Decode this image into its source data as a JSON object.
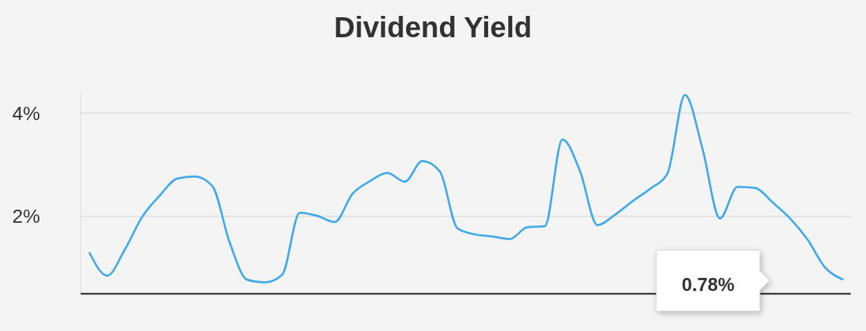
{
  "chart_data": {
    "type": "line",
    "title": "Dividend Yield",
    "categories": [
      null,
      null,
      null,
      null,
      null,
      null,
      null,
      null,
      null,
      null,
      null,
      null,
      null,
      null,
      null,
      null,
      null,
      null,
      null,
      null,
      null,
      null,
      null,
      null,
      null,
      null,
      null,
      null,
      null,
      null,
      null,
      null,
      null,
      null,
      null,
      null,
      null,
      null,
      null,
      null,
      null,
      null,
      null,
      null
    ],
    "series": [
      {
        "color": "#42a9ec",
        "values": [
          1.29,
          0.85,
          1.35,
          1.99,
          2.4,
          2.73,
          2.77,
          2.59,
          1.49,
          0.77,
          0.72,
          0.87,
          2.07,
          2.01,
          1.89,
          2.43,
          2.68,
          2.84,
          2.67,
          3.07,
          2.87,
          1.77,
          1.65,
          1.61,
          1.56,
          1.79,
          1.81,
          3.49,
          2.88,
          1.83,
          2.03,
          2.29,
          2.53,
          2.83,
          4.35,
          3.31,
          1.96,
          2.57,
          2.55,
          2.27,
          1.96,
          1.55,
          1.01,
          0.78
        ]
      }
    ],
    "yticks": [
      {
        "value": 2,
        "label": "2%"
      },
      {
        "value": 4,
        "label": "4%"
      }
    ],
    "ylim": [
      0.5,
      4.4
    ],
    "grid": "y",
    "marker": "none",
    "line_style": "solid",
    "annotations": [
      "0.78%"
    ]
  }
}
